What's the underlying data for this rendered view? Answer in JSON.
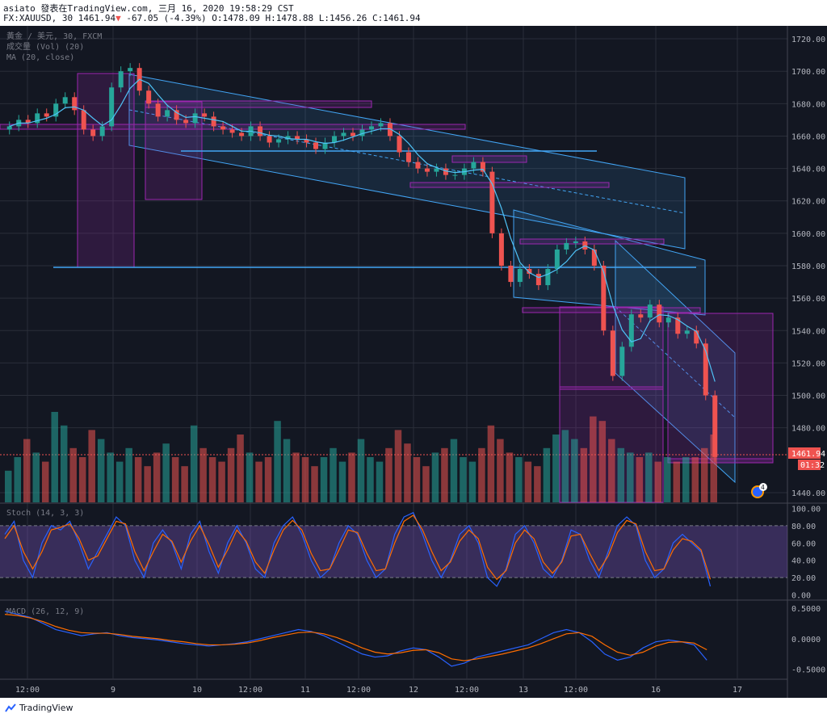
{
  "header": {
    "line1": "asiato 發表在TradingView.com, 三月 16, 2020 19:58:29 CST",
    "symbol": "FX:XAUUSD, 30",
    "last": "1461.94",
    "change": "-67.05 (-4.39%)",
    "ohlc": "O:1478.09 H:1478.88 L:1456.26 C:1461.94"
  },
  "legend": {
    "title": "黃金 / 美元, 30, FXCM",
    "volume": "成交量 (Vol) (20)",
    "ma": "MA (20, close)",
    "stoch": "Stoch (14, 3, 3)",
    "macd": "MACD (26, 12, 9)"
  },
  "price_tag": "1461.94",
  "countdown_tag": "01:32",
  "flag_badge": "4",
  "footer": {
    "brand": "TradingView"
  },
  "colors": {
    "bg": "#131722",
    "up": "#26a69a",
    "down": "#ef5350",
    "channel": "#42a5f5",
    "box": "#9c27b0",
    "stoch_k": "#2962ff",
    "stoch_d": "#ff6d00",
    "ma": "#4fc3f7"
  },
  "chart_data": [
    {
      "type": "candlestick",
      "y_ticks": [
        "1720.00",
        "1700.00",
        "1680.00",
        "1660.00",
        "1640.00",
        "1620.00",
        "1600.00",
        "1580.00",
        "1560.00",
        "1540.00",
        "1520.00",
        "1500.00",
        "1480.00",
        "1440.00"
      ],
      "x_ticks": [
        "12:00",
        "9",
        "10",
        "12:00",
        "11",
        "12:00",
        "12",
        "12:00",
        "13",
        "12:00",
        "16",
        "17"
      ],
      "ylim": [
        1434,
        1728
      ],
      "close_path": [
        1666,
        1670,
        1668,
        1674,
        1672,
        1680,
        1684,
        1676,
        1664,
        1660,
        1666,
        1690,
        1700,
        1702,
        1688,
        1680,
        1672,
        1676,
        1670,
        1668,
        1674,
        1672,
        1666,
        1664,
        1662,
        1660,
        1666,
        1660,
        1656,
        1658,
        1660,
        1658,
        1656,
        1652,
        1656,
        1660,
        1662,
        1660,
        1664,
        1666,
        1668,
        1660,
        1650,
        1644,
        1640,
        1638,
        1640,
        1636,
        1636,
        1640,
        1644,
        1638,
        1600,
        1580,
        1570,
        1578,
        1575,
        1568,
        1578,
        1590,
        1594,
        1595,
        1590,
        1580,
        1540,
        1512,
        1530,
        1550,
        1548,
        1556,
        1545,
        1548,
        1538,
        1540,
        1532,
        1500,
        1462
      ],
      "final_close": 1461.94
    },
    {
      "type": "bar",
      "name": "Vol (20)",
      "values_relative": [
        0.35,
        0.5,
        0.7,
        0.55,
        0.45,
        1.0,
        0.85,
        0.6,
        0.5,
        0.8,
        0.7,
        0.55,
        0.45,
        0.6,
        0.5,
        0.4,
        0.55,
        0.65,
        0.5,
        0.4,
        0.85,
        0.6,
        0.5,
        0.45,
        0.6,
        0.75,
        0.55,
        0.45,
        0.5,
        0.9,
        0.7,
        0.55,
        0.5,
        0.4,
        0.5,
        0.6,
        0.45,
        0.55,
        0.7,
        0.5,
        0.45,
        0.6,
        0.8,
        0.65,
        0.5,
        0.4,
        0.55,
        0.6,
        0.7,
        0.5,
        0.45,
        0.6,
        0.85,
        0.7,
        0.55,
        0.5,
        0.45,
        0.4,
        0.6,
        0.75,
        0.8,
        0.7,
        0.6,
        0.95,
        0.9,
        0.7,
        0.6,
        0.55,
        0.5,
        0.55,
        0.45,
        0.5,
        0.45,
        0.5,
        0.5,
        0.6,
        0.75
      ]
    },
    {
      "type": "line",
      "name": "Stoch (14, 3, 3)",
      "y_ticks": [
        "100.00",
        "80.00",
        "60.00",
        "40.00",
        "20.00",
        "0.00"
      ],
      "ylim": [
        -5,
        105
      ],
      "bands": [
        20,
        80
      ],
      "k": [
        70,
        85,
        40,
        20,
        60,
        80,
        75,
        85,
        60,
        30,
        50,
        70,
        90,
        80,
        40,
        20,
        60,
        75,
        60,
        30,
        70,
        85,
        50,
        25,
        60,
        80,
        60,
        30,
        20,
        60,
        80,
        90,
        70,
        40,
        20,
        30,
        60,
        80,
        70,
        40,
        20,
        30,
        70,
        90,
        95,
        70,
        40,
        20,
        40,
        70,
        80,
        60,
        20,
        10,
        30,
        70,
        80,
        60,
        30,
        20,
        40,
        75,
        70,
        40,
        20,
        50,
        80,
        90,
        80,
        40,
        20,
        30,
        60,
        70,
        60,
        50,
        10
      ],
      "d": [
        65,
        80,
        50,
        30,
        50,
        75,
        78,
        82,
        65,
        40,
        45,
        65,
        85,
        82,
        50,
        28,
        50,
        70,
        62,
        38,
        62,
        80,
        58,
        32,
        52,
        75,
        62,
        38,
        25,
        52,
        75,
        86,
        75,
        48,
        28,
        30,
        52,
        75,
        72,
        48,
        28,
        30,
        60,
        85,
        92,
        75,
        50,
        28,
        38,
        62,
        75,
        65,
        32,
        18,
        28,
        60,
        75,
        65,
        38,
        25,
        38,
        68,
        70,
        48,
        28,
        45,
        72,
        86,
        82,
        50,
        28,
        30,
        52,
        65,
        62,
        52,
        18
      ]
    },
    {
      "type": "line",
      "name": "MACD (26, 12, 9)",
      "y_ticks": [
        "0.5000",
        "0.0000",
        "-0.5000"
      ],
      "ylim": [
        -0.65,
        0.62
      ],
      "macd": [
        0.45,
        0.4,
        0.35,
        0.25,
        0.15,
        0.1,
        0.05,
        0.08,
        0.1,
        0.05,
        0.02,
        0.0,
        -0.02,
        -0.05,
        -0.08,
        -0.1,
        -0.12,
        -0.1,
        -0.08,
        -0.05,
        0.0,
        0.05,
        0.1,
        0.15,
        0.12,
        0.05,
        -0.05,
        -0.15,
        -0.25,
        -0.3,
        -0.28,
        -0.2,
        -0.15,
        -0.18,
        -0.3,
        -0.45,
        -0.4,
        -0.3,
        -0.25,
        -0.2,
        -0.15,
        -0.1,
        0.0,
        0.1,
        0.15,
        0.1,
        -0.05,
        -0.25,
        -0.35,
        -0.3,
        -0.15,
        -0.05,
        -0.02,
        -0.05,
        -0.1,
        -0.35
      ],
      "signal": [
        0.4,
        0.38,
        0.34,
        0.28,
        0.2,
        0.14,
        0.1,
        0.09,
        0.09,
        0.07,
        0.04,
        0.02,
        0.0,
        -0.03,
        -0.05,
        -0.08,
        -0.1,
        -0.1,
        -0.09,
        -0.07,
        -0.03,
        0.02,
        0.06,
        0.1,
        0.11,
        0.08,
        0.02,
        -0.06,
        -0.15,
        -0.22,
        -0.25,
        -0.23,
        -0.19,
        -0.18,
        -0.23,
        -0.33,
        -0.36,
        -0.33,
        -0.29,
        -0.25,
        -0.2,
        -0.15,
        -0.08,
        0.0,
        0.08,
        0.1,
        0.04,
        -0.1,
        -0.22,
        -0.27,
        -0.22,
        -0.12,
        -0.06,
        -0.05,
        -0.07,
        -0.18
      ]
    }
  ]
}
